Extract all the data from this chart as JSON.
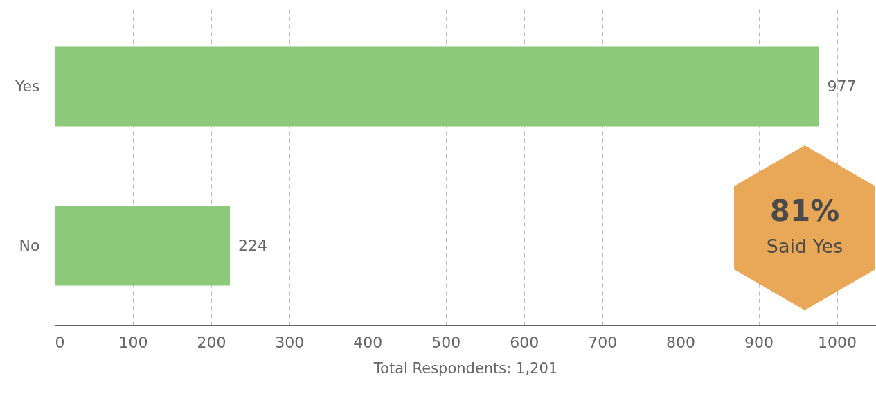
{
  "chart_data": {
    "type": "bar",
    "orientation": "horizontal",
    "categories": [
      "Yes",
      "No"
    ],
    "values": [
      977,
      224
    ],
    "color": "#8cca7a",
    "xlim": [
      0,
      1050
    ],
    "xticks": [
      0,
      100,
      200,
      300,
      400,
      500,
      600,
      700,
      800,
      900,
      1000
    ],
    "xlabel": "Total Respondents: 1,201",
    "grid": "x",
    "data_labels": true,
    "annotations": [
      "81%",
      "Said Yes"
    ]
  }
}
